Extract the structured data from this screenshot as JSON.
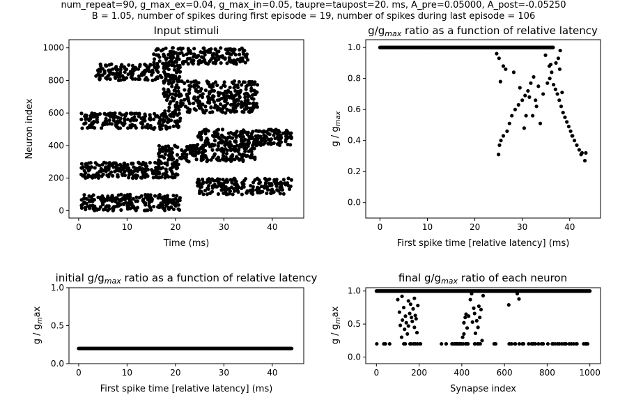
{
  "figure": {
    "suptitle_line1": "num_repeat=90, g_max_ex=0.04, g_max_in=0.05, taupre=taupost=20. ms, A_pre=0.05000, A_post=-0.05250",
    "suptitle_line2": "B = 1.05, number of spikes during first episode = 19, number of spikes during last episode = 106",
    "marker_color": "#000000",
    "background": "#ffffff"
  },
  "chart_data": [
    {
      "id": "p1",
      "type": "scatter",
      "title": "Input stimuli",
      "xlabel": "Time (ms)",
      "ylabel": "Neuron index",
      "xlim": [
        -2,
        46.5
      ],
      "ylim": [
        -45,
        1050
      ],
      "xticks": [
        0,
        10,
        20,
        30,
        40
      ],
      "yticks": [
        0,
        200,
        400,
        600,
        800,
        1000
      ],
      "grid": false,
      "clusters": [
        {
          "neurons": [
            0,
            100
          ],
          "t": [
            0.5,
            21
          ],
          "spikes": 230
        },
        {
          "neurons": [
            100,
            200
          ],
          "t": [
            24.5,
            44
          ],
          "spikes": 190
        },
        {
          "neurons": [
            200,
            300
          ],
          "t": [
            0.5,
            21
          ],
          "spikes": 230
        },
        {
          "neurons": [
            300,
            400
          ],
          "t": [
            16.5,
            36.5
          ],
          "spikes": 210
        },
        {
          "neurons": [
            400,
            500
          ],
          "t": [
            24.5,
            44
          ],
          "spikes": 220
        },
        {
          "neurons": [
            500,
            600
          ],
          "t": [
            0.5,
            21
          ],
          "spikes": 200
        },
        {
          "neurons": [
            600,
            800
          ],
          "t": [
            17.5,
            37
          ],
          "spikes": 330
        },
        {
          "neurons": [
            800,
            900
          ],
          "t": [
            3.5,
            21
          ],
          "spikes": 180
        },
        {
          "neurons": [
            900,
            1000
          ],
          "t": [
            15.5,
            35
          ],
          "spikes": 190
        }
      ]
    },
    {
      "id": "p2",
      "type": "scatter",
      "title": "g/g_max ratio as a function of relative latency",
      "xlabel": "First spike time [relative latency] (ms)",
      "ylabel": "g / g_max",
      "xlim": [
        -3,
        46.5
      ],
      "ylim": [
        -0.1,
        1.05
      ],
      "xticks": [
        0,
        10,
        20,
        30,
        40
      ],
      "yticks": [
        0.0,
        0.2,
        0.4,
        0.6,
        0.8,
        1.0
      ],
      "grid": false,
      "points": [
        [
          25.0,
          0.31
        ],
        [
          25.2,
          0.37
        ],
        [
          25.5,
          0.4
        ],
        [
          26.0,
          0.43
        ],
        [
          26.8,
          0.46
        ],
        [
          27.3,
          0.51
        ],
        [
          27.8,
          0.56
        ],
        [
          28.5,
          0.6
        ],
        [
          29.2,
          0.63
        ],
        [
          30.0,
          0.66
        ],
        [
          30.6,
          0.69
        ],
        [
          31.2,
          0.72
        ],
        [
          31.8,
          0.77
        ],
        [
          32.4,
          0.81
        ],
        [
          28.2,
          0.84
        ],
        [
          29.5,
          0.74
        ],
        [
          30.8,
          0.56
        ],
        [
          31.5,
          0.68
        ],
        [
          32.2,
          0.56
        ],
        [
          33.0,
          0.62
        ],
        [
          33.8,
          0.51
        ],
        [
          34.4,
          0.7
        ],
        [
          33.4,
          0.75
        ],
        [
          32.8,
          0.66
        ],
        [
          24.6,
          0.96
        ],
        [
          25.1,
          0.93
        ],
        [
          25.4,
          0.78
        ],
        [
          26.0,
          0.88
        ],
        [
          26.5,
          0.86
        ],
        [
          30.4,
          0.48
        ],
        [
          35.3,
          0.77
        ],
        [
          35.8,
          0.8
        ],
        [
          36.2,
          0.84
        ],
        [
          36.6,
          0.76
        ],
        [
          37.0,
          0.73
        ],
        [
          37.4,
          0.7
        ],
        [
          37.8,
          0.66
        ],
        [
          38.2,
          0.62
        ],
        [
          38.6,
          0.58
        ],
        [
          39.0,
          0.55
        ],
        [
          39.4,
          0.52
        ],
        [
          39.8,
          0.49
        ],
        [
          40.2,
          0.46
        ],
        [
          40.6,
          0.43
        ],
        [
          41.0,
          0.4
        ],
        [
          41.5,
          0.37
        ],
        [
          42.0,
          0.34
        ],
        [
          42.4,
          0.31
        ],
        [
          43.2,
          0.27
        ],
        [
          43.4,
          0.32
        ],
        [
          36.0,
          0.89
        ],
        [
          37.1,
          0.9
        ],
        [
          37.6,
          0.93
        ],
        [
          38.0,
          0.98
        ],
        [
          38.4,
          0.71
        ],
        [
          37.9,
          0.86
        ],
        [
          35.7,
          0.88
        ],
        [
          34.9,
          0.95
        ],
        [
          40.5,
          0.43
        ],
        [
          42.6,
          0.32
        ]
      ],
      "plateau": {
        "value": 1.0,
        "x_range": [
          0,
          36.5
        ],
        "count": 170
      }
    },
    {
      "id": "p3",
      "type": "scatter",
      "title": "initial g/g_max ratio as a function of relative latency",
      "xlabel": "First spike time [relative latency] (ms)",
      "ylabel": "g / g_max",
      "xlim": [
        -2,
        46.5
      ],
      "ylim": [
        0.0,
        1.0
      ],
      "xticks": [
        0,
        10,
        20,
        30,
        40
      ],
      "yticks": [
        0.0,
        0.5,
        1.0
      ],
      "grid": false,
      "constant": {
        "value": 0.2,
        "x_range": [
          0,
          44
        ],
        "count": 280
      }
    },
    {
      "id": "p4",
      "type": "scatter",
      "title": "final g/g_max ratio of each neuron",
      "xlabel": "Synapse index",
      "ylabel": "g / g_max",
      "xlim": [
        -50,
        1050
      ],
      "ylim": [
        -0.1,
        1.05
      ],
      "xticks": [
        0,
        200,
        400,
        600,
        800,
        1000
      ],
      "yticks": [
        0.0,
        0.5,
        1.0
      ],
      "grid": false,
      "top": {
        "value": 1.0,
        "x_range": [
          0,
          1000
        ],
        "count": 300
      },
      "bottom": {
        "value": 0.2,
        "x_ranges": [
          [
            0,
            600
          ],
          [
            620,
            1000
          ]
        ],
        "count": 75
      },
      "points": [
        [
          100,
          0.87
        ],
        [
          108,
          0.68
        ],
        [
          112,
          0.48
        ],
        [
          118,
          0.3
        ],
        [
          122,
          0.56
        ],
        [
          128,
          0.75
        ],
        [
          132,
          0.42
        ],
        [
          136,
          0.62
        ],
        [
          140,
          0.52
        ],
        [
          145,
          0.35
        ],
        [
          150,
          0.47
        ],
        [
          156,
          0.66
        ],
        [
          160,
          0.8
        ],
        [
          164,
          0.6
        ],
        [
          168,
          0.54
        ],
        [
          172,
          0.73
        ],
        [
          178,
          0.45
        ],
        [
          182,
          0.63
        ],
        [
          186,
          0.58
        ],
        [
          190,
          0.37
        ],
        [
          194,
          0.78
        ],
        [
          120,
          0.92
        ],
        [
          150,
          0.85
        ],
        [
          178,
          0.89
        ],
        [
          404,
          0.3
        ],
        [
          410,
          0.52
        ],
        [
          416,
          0.6
        ],
        [
          420,
          0.65
        ],
        [
          425,
          0.44
        ],
        [
          432,
          0.62
        ],
        [
          440,
          0.87
        ],
        [
          446,
          0.96
        ],
        [
          450,
          0.53
        ],
        [
          456,
          0.74
        ],
        [
          460,
          0.66
        ],
        [
          464,
          0.36
        ],
        [
          470,
          0.55
        ],
        [
          476,
          0.45
        ],
        [
          480,
          0.77
        ],
        [
          484,
          0.6
        ],
        [
          490,
          0.72
        ],
        [
          495,
          0.25
        ],
        [
          500,
          0.93
        ],
        [
          620,
          0.79
        ],
        [
          660,
          0.96
        ],
        [
          668,
          0.88
        ],
        [
          410,
          0.35
        ]
      ]
    }
  ]
}
